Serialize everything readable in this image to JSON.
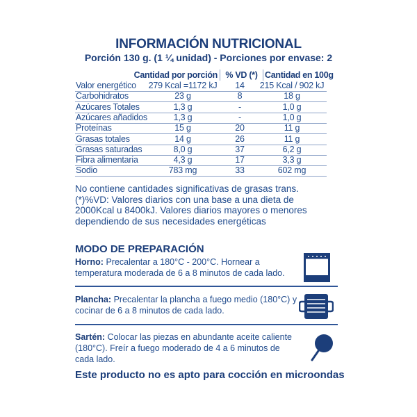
{
  "title": "INFORMACIÓN NUTRICIONAL",
  "subtitle": "Porción 130 g. (1 ¼ unidad) - Porciones por envase: 2",
  "table": {
    "headers": [
      "Cantidad por porción",
      "% VD (*)",
      "Cantidad en 100g"
    ],
    "rows": [
      {
        "name": "Valor energético",
        "portion": "279 Kcal =1172 kJ",
        "vd": "14",
        "per100": "215 Kcal  /  902 kJ"
      },
      {
        "name": "Carbohidratos",
        "portion": "23 g",
        "vd": "8",
        "per100": "18 g"
      },
      {
        "name": "Azúcares Totales",
        "portion": "1,3 g",
        "vd": "-",
        "per100": "1,0 g"
      },
      {
        "name": "Azúcares añadidos",
        "portion": "1,3 g",
        "vd": "-",
        "per100": "1,0 g"
      },
      {
        "name": "Proteínas",
        "portion": "15 g",
        "vd": "20",
        "per100": "11 g"
      },
      {
        "name": "Grasas totales",
        "portion": "14 g",
        "vd": "26",
        "per100": "11 g"
      },
      {
        "name": "Grasas saturadas",
        "portion": "8,0 g",
        "vd": "37",
        "per100": "6,2 g"
      },
      {
        "name": "Fibra alimentaria",
        "portion": "4,3 g",
        "vd": "17",
        "per100": "3,3 g"
      },
      {
        "name": "Sodio",
        "portion": "783 mg",
        "vd": "33",
        "per100": "602 mg"
      }
    ]
  },
  "notes": [
    "No contiene cantidades significativas de grasas trans.",
    "(*)%VD: Valores diarios con una base a una dieta de",
    "2000Kcal u 8400kJ. Valores diarios mayores o menores",
    "dependiendo de sus necesidades energéticas"
  ],
  "preparation": {
    "heading": "MODO DE PREPARACIÓN",
    "steps": [
      {
        "label": "Horno:",
        "text": " Precalentar a 180°C - 200°C. Hornear a temperatura moderada de  6 a 8 minutos de cada lado.",
        "icon": "oven-icon"
      },
      {
        "label": "Plancha:",
        "text": " Precalentar la plancha a fuego medio (180°C) y cocinar de 6 a 8 minutos de cada lado.",
        "icon": "griddle-icon"
      },
      {
        "label": "Sartén:",
        "text": " Colocar las piezas en abundante aceite caliente (180°C). Freír a fuego moderado de 4 a 6 minutos de cada lado.",
        "icon": "frying-pan-icon"
      }
    ]
  },
  "footer": "Este producto no es apto para cocción en microondas",
  "colors": {
    "primary": "#1c3e7a",
    "text": "#1f4a8c"
  }
}
